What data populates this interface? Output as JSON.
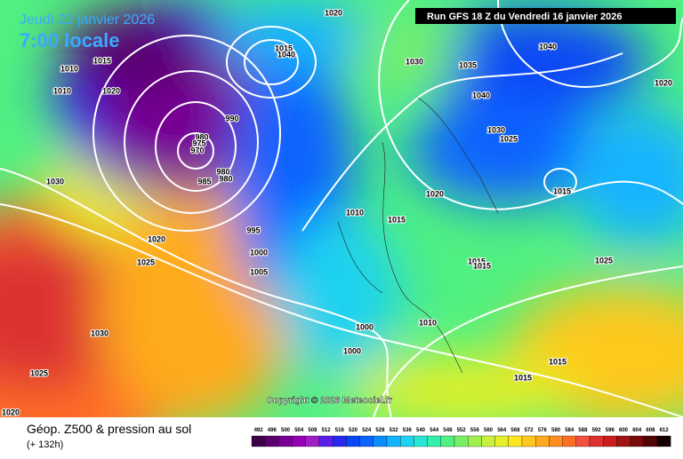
{
  "header": {
    "date": "Jeudi 22 janvier 2026",
    "time": "7:00 locale",
    "run": "Run GFS 18 Z du Vendredi 16 janvier 2026"
  },
  "copyright": "Copyright © 2026 Meteociel.fr",
  "footer": {
    "title": "Géop. Z500 & pression au sol",
    "lead": "(+ 132h)"
  },
  "pressure_labels": [
    1020,
    1015,
    1010,
    1010,
    1020,
    1015,
    1040,
    1030,
    1035,
    1040,
    1040,
    1020,
    990,
    980,
    975,
    970,
    980,
    985,
    980,
    1030,
    1030,
    1025,
    1020,
    1015,
    1010,
    1015,
    995,
    1020,
    1025,
    1000,
    1005,
    1015,
    1015,
    1025,
    1030,
    1010,
    1000,
    1000,
    1025,
    1015,
    1015,
    1020
  ],
  "color_scale": {
    "values": [
      492,
      496,
      500,
      504,
      508,
      512,
      516,
      520,
      524,
      528,
      532,
      536,
      540,
      544,
      548,
      552,
      556,
      560,
      564,
      568,
      572,
      576,
      580,
      584,
      588,
      592,
      596,
      600,
      604,
      608,
      612
    ],
    "colors": [
      "#3c0046",
      "#5a006e",
      "#780096",
      "#9600b4",
      "#a01ec8",
      "#5a1ee6",
      "#2828f0",
      "#0a46f5",
      "#0a64ff",
      "#0a8cff",
      "#14b4ff",
      "#1ed2f0",
      "#28e6d2",
      "#32f0aa",
      "#50f082",
      "#78f064",
      "#a0f050",
      "#c8f03c",
      "#e6f028",
      "#ffe61e",
      "#ffc81e",
      "#ffaa1e",
      "#ff8c1e",
      "#ff6e28",
      "#f0503c",
      "#dc3232",
      "#c81e1e",
      "#a01414",
      "#780a0a",
      "#500505",
      "#140000"
    ]
  }
}
